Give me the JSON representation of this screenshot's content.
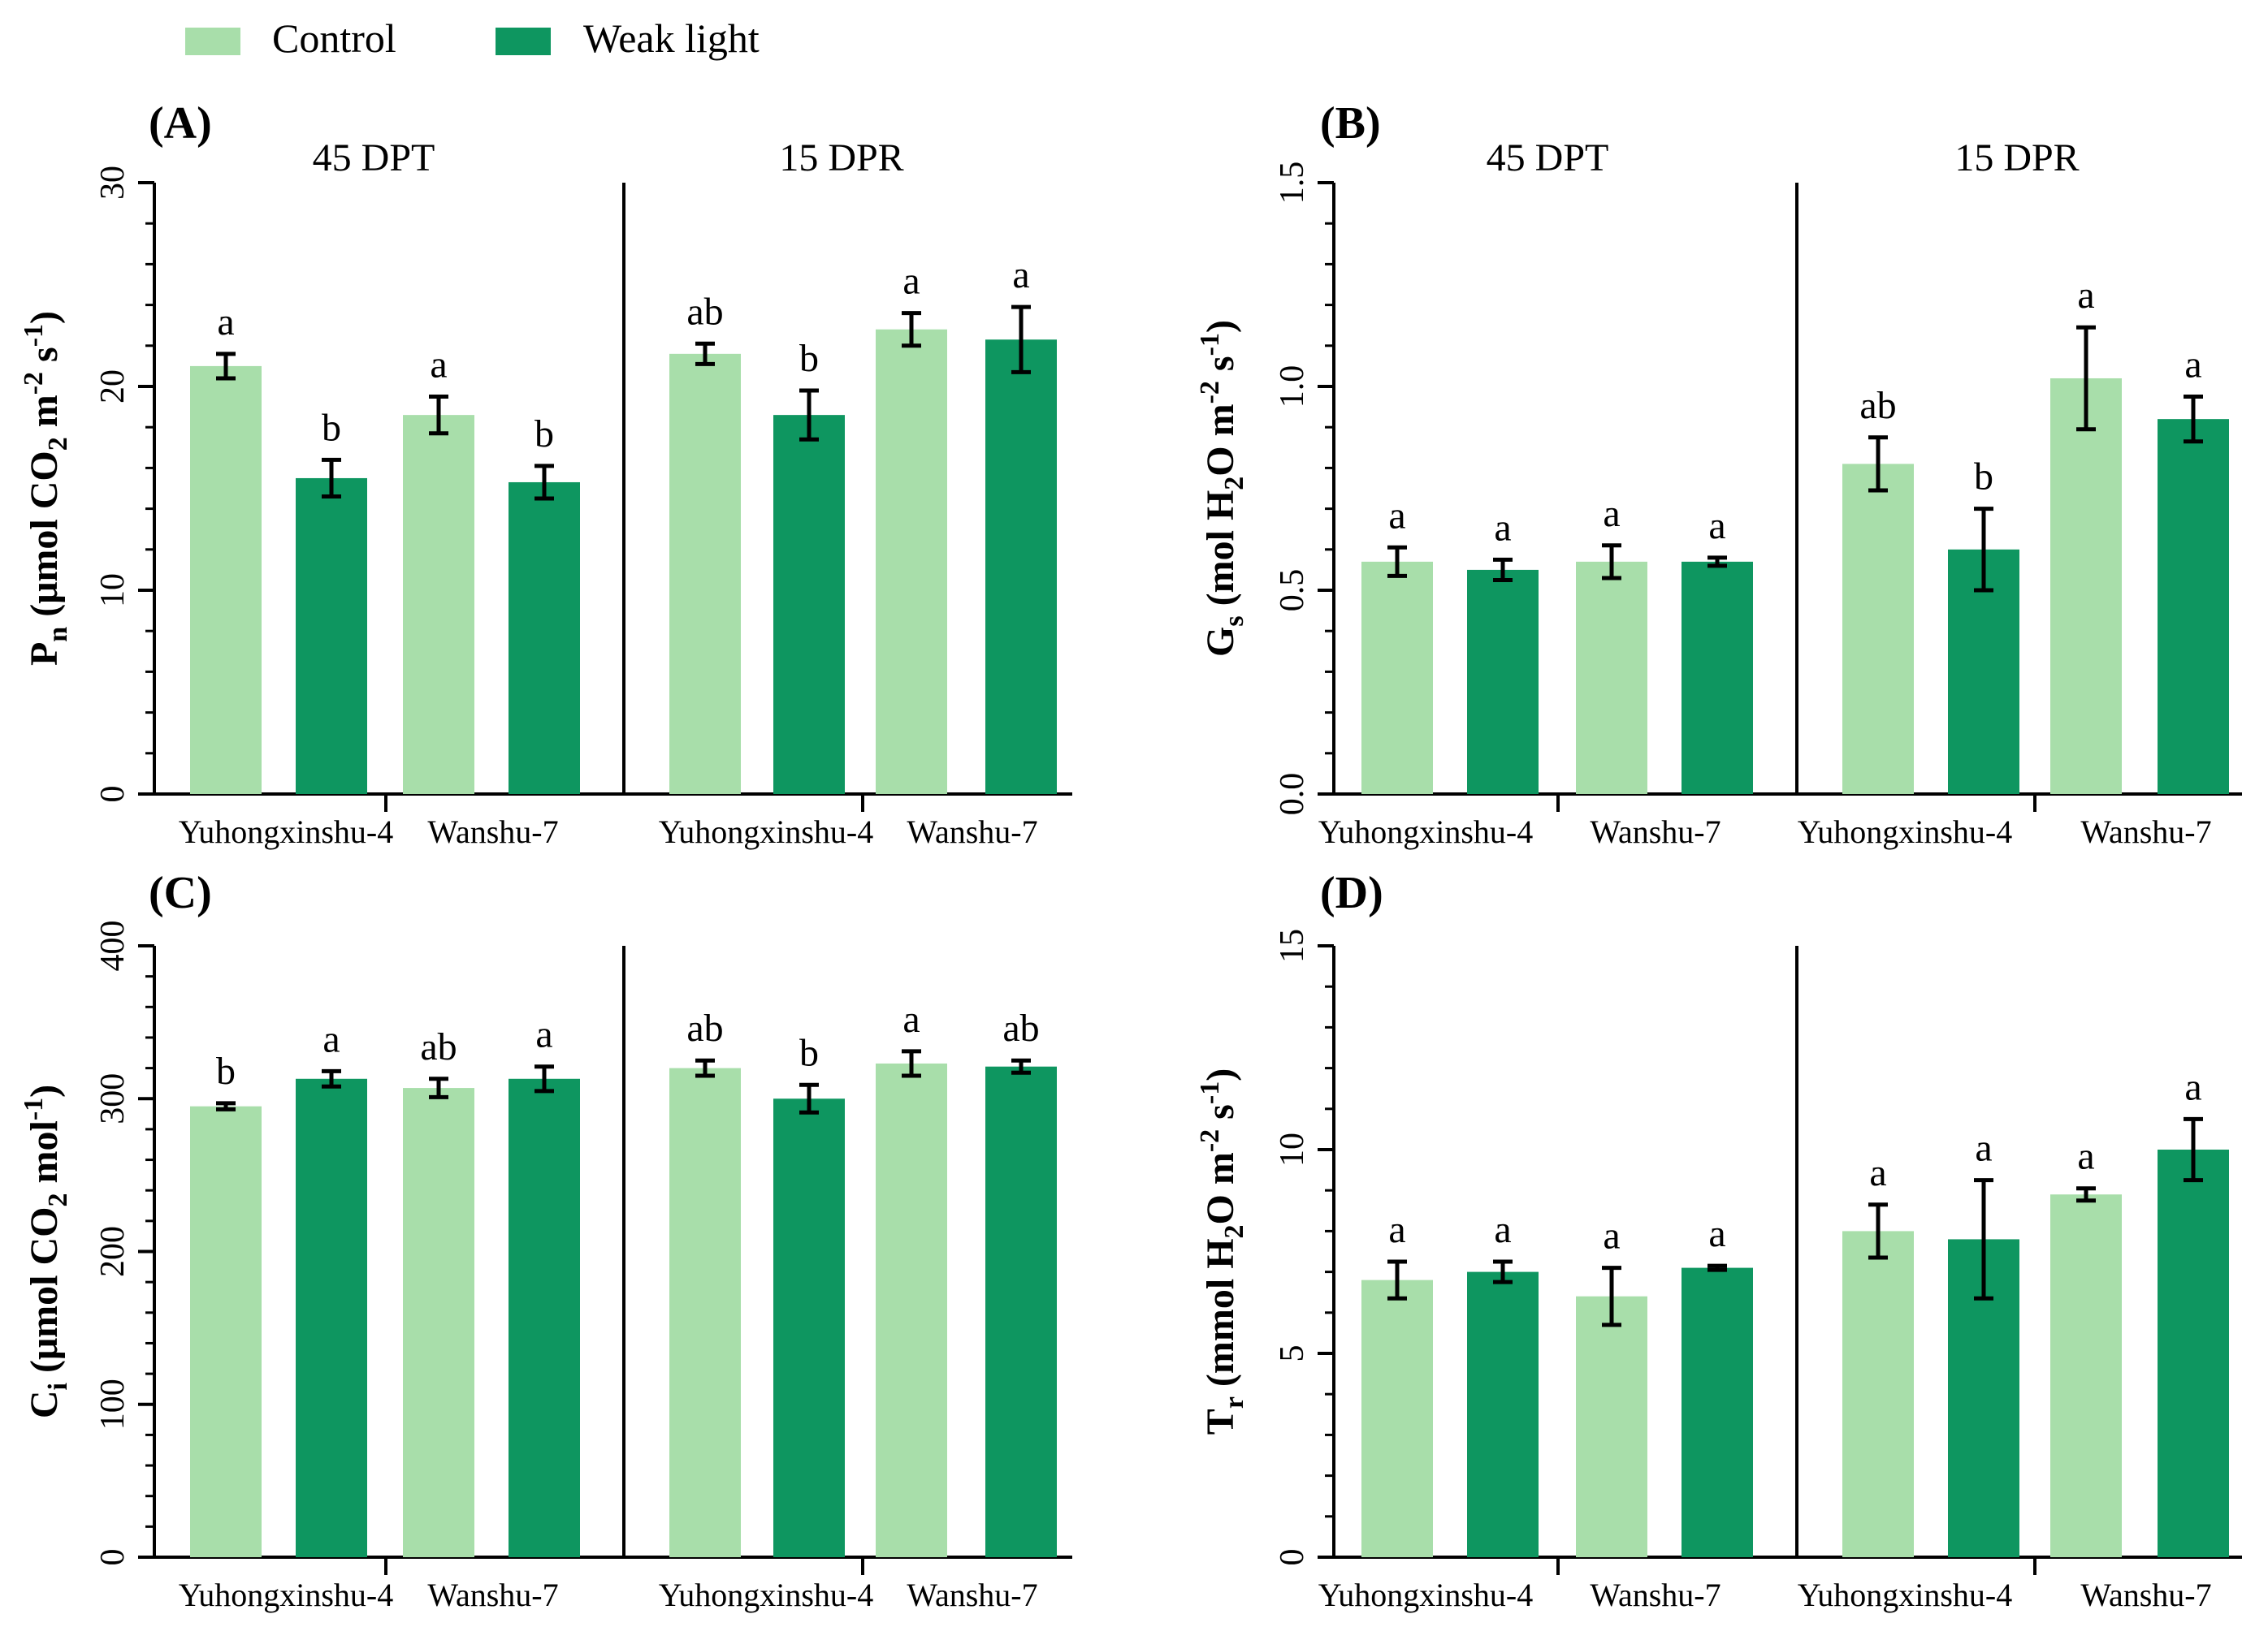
{
  "colors": {
    "control": "#a8deaa",
    "weak": "#0e9660",
    "axis": "#000000"
  },
  "legend": [
    {
      "label": "Control",
      "series": "control"
    },
    {
      "label": "Weak light",
      "series": "weak"
    }
  ],
  "chart_data": [
    {
      "type": "bar",
      "panel_label": "(A)",
      "title_html_note": "P_n (μmol CO_2 m^-2 s^-1)",
      "ylabel": {
        "main": "P",
        "sub1": "n",
        "mid1": " (μmol CO",
        "sub2": "2",
        "mid2": " m",
        "sup1": "-2",
        "mid3": " s",
        "sup2": "-1",
        "end": ")"
      },
      "ylim": [
        0,
        30
      ],
      "ticks": [
        0,
        10,
        20,
        30
      ],
      "tick_labels": [
        "0",
        "10",
        "20",
        "30"
      ],
      "groups": [
        {
          "label": "45 DPT",
          "categories": [
            {
              "label": "Yuhongxinshu-4",
              "values": [
                21.0,
                15.5
              ],
              "errors": [
                0.6,
                0.9
              ],
              "letters": [
                "a",
                "b"
              ]
            },
            {
              "label": "Wanshu-7",
              "values": [
                18.6,
                15.3
              ],
              "errors": [
                0.9,
                0.8
              ],
              "letters": [
                "a",
                "b"
              ]
            }
          ]
        },
        {
          "label": "15 DPR",
          "categories": [
            {
              "label": "Yuhongxinshu-4",
              "values": [
                21.6,
                18.6
              ],
              "errors": [
                0.5,
                1.2
              ],
              "letters": [
                "ab",
                "b"
              ]
            },
            {
              "label": "Wanshu-7",
              "values": [
                22.8,
                22.3
              ],
              "errors": [
                0.8,
                1.6
              ],
              "letters": [
                "a",
                "a"
              ]
            }
          ]
        }
      ]
    },
    {
      "type": "bar",
      "panel_label": "(B)",
      "ylabel": {
        "main": "G",
        "sub1": "s",
        "mid1": " (mol H",
        "sub2": "2",
        "mid2": "O m",
        "sup1": "-2",
        "mid3": " s",
        "sup2": "-1",
        "end": ")"
      },
      "ylim": [
        0,
        1.5
      ],
      "ticks": [
        0,
        0.5,
        1.0,
        1.5
      ],
      "tick_labels": [
        "0.0",
        "0.5",
        "1.0",
        "1.5"
      ],
      "groups": [
        {
          "label": "45 DPT",
          "categories": [
            {
              "label": "Yuhongxinshu-4",
              "values": [
                0.57,
                0.55
              ],
              "errors": [
                0.035,
                0.025
              ],
              "letters": [
                "a",
                "a"
              ]
            },
            {
              "label": "Wanshu-7",
              "values": [
                0.57,
                0.57
              ],
              "errors": [
                0.04,
                0.01
              ],
              "letters": [
                "a",
                "a"
              ]
            }
          ]
        },
        {
          "label": "15 DPR",
          "categories": [
            {
              "label": "Yuhongxinshu-4",
              "values": [
                0.81,
                0.6
              ],
              "errors": [
                0.065,
                0.1
              ],
              "letters": [
                "ab",
                "b"
              ]
            },
            {
              "label": "Wanshu-7",
              "values": [
                1.02,
                0.92
              ],
              "errors": [
                0.125,
                0.055
              ],
              "letters": [
                "a",
                "a"
              ]
            }
          ]
        }
      ]
    },
    {
      "type": "bar",
      "panel_label": "(C)",
      "ylabel": {
        "main": "C",
        "sub1": "i",
        "mid1": " (μmol CO",
        "sub2": "2",
        "mid2": " mol",
        "sup1": "-1",
        "mid3": "",
        "sup2": "",
        "end": ")"
      },
      "ylim": [
        0,
        400
      ],
      "ticks": [
        0,
        100,
        200,
        300,
        400
      ],
      "tick_labels": [
        "0",
        "100",
        "200",
        "300",
        "400"
      ],
      "groups": [
        {
          "label": "",
          "categories": [
            {
              "label": "Yuhongxinshu-4",
              "values": [
                295,
                313
              ],
              "errors": [
                2,
                5
              ],
              "letters": [
                "b",
                "a"
              ]
            },
            {
              "label": "Wanshu-7",
              "values": [
                307,
                313
              ],
              "errors": [
                6,
                8
              ],
              "letters": [
                "ab",
                "a"
              ]
            }
          ]
        },
        {
          "label": "",
          "categories": [
            {
              "label": "Yuhongxinshu-4",
              "values": [
                320,
                300
              ],
              "errors": [
                5,
                9
              ],
              "letters": [
                "ab",
                "b"
              ]
            },
            {
              "label": "Wanshu-7",
              "values": [
                323,
                321
              ],
              "errors": [
                8,
                4
              ],
              "letters": [
                "a",
                "ab"
              ]
            }
          ]
        }
      ]
    },
    {
      "type": "bar",
      "panel_label": "(D)",
      "ylabel": {
        "main": "T",
        "sub1": "r",
        "mid1": " (mmol H",
        "sub2": "2",
        "mid2": "O m",
        "sup1": "-2",
        "mid3": " s",
        "sup2": "-1",
        "end": ")"
      },
      "ylim": [
        0,
        15
      ],
      "ticks": [
        0,
        5,
        10,
        15
      ],
      "tick_labels": [
        "0",
        "5",
        "10",
        "15"
      ],
      "groups": [
        {
          "label": "",
          "categories": [
            {
              "label": "Yuhongxinshu-4",
              "values": [
                6.8,
                7.0
              ],
              "errors": [
                0.45,
                0.25
              ],
              "letters": [
                "a",
                "a"
              ]
            },
            {
              "label": "Wanshu-7",
              "values": [
                6.4,
                7.1
              ],
              "errors": [
                0.7,
                0.05
              ],
              "letters": [
                "a",
                "a"
              ]
            }
          ]
        },
        {
          "label": "",
          "categories": [
            {
              "label": "Yuhongxinshu-4",
              "values": [
                8.0,
                7.8
              ],
              "errors": [
                0.65,
                1.45
              ],
              "letters": [
                "a",
                "a"
              ]
            },
            {
              "label": "Wanshu-7",
              "values": [
                8.9,
                10.0
              ],
              "errors": [
                0.15,
                0.75
              ],
              "letters": [
                "a",
                "a"
              ]
            }
          ]
        }
      ]
    }
  ]
}
